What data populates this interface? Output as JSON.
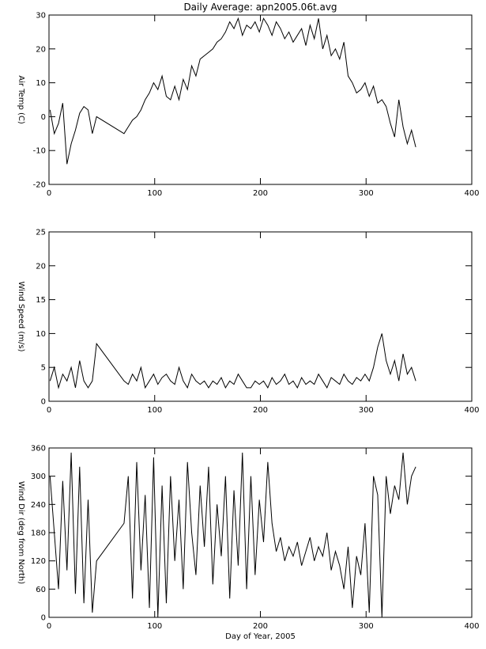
{
  "chart_data": [
    {
      "type": "line",
      "title": "Daily Average: apn2005.06t.avg",
      "ylabel": "Air Temp (C)",
      "x": [
        1,
        5,
        9,
        13,
        17,
        21,
        25,
        29,
        33,
        37,
        41,
        45,
        71,
        75,
        79,
        83,
        87,
        91,
        95,
        99,
        103,
        107,
        111,
        115,
        119,
        123,
        127,
        131,
        135,
        139,
        143,
        147,
        151,
        155,
        159,
        163,
        167,
        171,
        175,
        179,
        183,
        187,
        191,
        195,
        199,
        203,
        207,
        211,
        215,
        219,
        223,
        227,
        231,
        235,
        239,
        243,
        247,
        251,
        255,
        259,
        263,
        267,
        271,
        275,
        279,
        283,
        287,
        291,
        295,
        299,
        303,
        307,
        311,
        315,
        319,
        323,
        327,
        331,
        335,
        339,
        343,
        347
      ],
      "series": [
        {
          "color": "#000000",
          "values": [
            2,
            -5,
            -2,
            4,
            -14,
            -8,
            -4,
            1,
            3,
            2,
            -5,
            0,
            -5,
            -3,
            -1,
            0,
            2,
            5,
            7,
            10,
            8,
            12,
            6,
            5,
            9,
            5,
            11,
            8,
            15,
            12,
            17,
            18,
            19,
            20,
            22,
            23,
            25,
            28,
            26,
            29,
            24,
            27,
            26,
            28,
            25,
            29,
            27,
            24,
            28,
            26,
            23,
            25,
            22,
            24,
            26,
            21,
            27,
            23,
            29,
            20,
            24,
            18,
            20,
            17,
            22,
            12,
            10,
            7,
            8,
            10,
            6,
            9,
            4,
            5,
            3,
            -2,
            -6,
            5,
            -3,
            -8,
            -4,
            -9
          ]
        }
      ],
      "xlim": [
        0,
        400
      ],
      "xticks": [
        0,
        100,
        200,
        300,
        400
      ],
      "ylim": [
        -20,
        30
      ],
      "yticks": [
        -20,
        -10,
        0,
        10,
        20,
        30
      ]
    },
    {
      "type": "line",
      "ylabel": "Wind Speed (m/s)",
      "x": [
        1,
        5,
        9,
        13,
        17,
        21,
        25,
        29,
        33,
        37,
        41,
        45,
        71,
        75,
        79,
        83,
        87,
        91,
        95,
        99,
        103,
        107,
        111,
        115,
        119,
        123,
        127,
        131,
        135,
        139,
        143,
        147,
        151,
        155,
        159,
        163,
        167,
        171,
        175,
        179,
        183,
        187,
        191,
        195,
        199,
        203,
        207,
        211,
        215,
        219,
        223,
        227,
        231,
        235,
        239,
        243,
        247,
        251,
        255,
        259,
        263,
        267,
        271,
        275,
        279,
        283,
        287,
        291,
        295,
        299,
        303,
        307,
        311,
        315,
        319,
        323,
        327,
        331,
        335,
        339,
        343,
        347
      ],
      "series": [
        {
          "color": "#000000",
          "values": [
            3,
            5,
            2,
            4,
            3,
            5,
            2,
            6,
            3,
            2,
            3,
            8.5,
            3,
            2.5,
            4,
            3,
            5,
            2,
            3,
            4,
            2.5,
            3.5,
            4,
            3,
            2.5,
            5,
            3,
            2,
            4,
            3,
            2.5,
            3,
            2,
            3,
            2.5,
            3.5,
            2,
            3,
            2.5,
            4,
            3,
            2,
            2,
            3,
            2.5,
            3,
            2,
            3.5,
            2.5,
            3,
            4,
            2.5,
            3,
            2,
            3.5,
            2.5,
            3,
            2.5,
            4,
            3,
            2,
            3.5,
            3,
            2.5,
            4,
            3,
            2.5,
            3.5,
            3,
            4,
            3,
            5,
            8,
            10,
            6,
            4,
            6,
            3,
            7,
            4,
            5,
            3
          ]
        }
      ],
      "xlim": [
        0,
        400
      ],
      "xticks": [
        0,
        100,
        200,
        300,
        400
      ],
      "ylim": [
        0,
        25
      ],
      "yticks": [
        0,
        5,
        10,
        15,
        20,
        25
      ]
    },
    {
      "type": "line",
      "ylabel": "Wind Dir (deg from North)",
      "xlabel": "Day of Year, 2005",
      "x": [
        1,
        5,
        9,
        13,
        17,
        21,
        25,
        29,
        33,
        37,
        41,
        45,
        71,
        75,
        79,
        83,
        87,
        91,
        95,
        99,
        103,
        107,
        111,
        115,
        119,
        123,
        127,
        131,
        135,
        139,
        143,
        147,
        151,
        155,
        159,
        163,
        167,
        171,
        175,
        179,
        183,
        187,
        191,
        195,
        199,
        203,
        207,
        211,
        215,
        219,
        223,
        227,
        231,
        235,
        239,
        243,
        247,
        251,
        255,
        259,
        263,
        267,
        271,
        275,
        279,
        283,
        287,
        291,
        295,
        299,
        303,
        307,
        311,
        315,
        319,
        323,
        327,
        331,
        335,
        339,
        343,
        347
      ],
      "series": [
        {
          "color": "#000000",
          "values": [
            300,
            180,
            60,
            290,
            100,
            350,
            50,
            320,
            30,
            250,
            10,
            120,
            200,
            300,
            40,
            330,
            100,
            260,
            20,
            340,
            0,
            280,
            30,
            300,
            120,
            250,
            60,
            330,
            180,
            90,
            280,
            150,
            320,
            70,
            240,
            130,
            300,
            40,
            270,
            110,
            350,
            60,
            300,
            90,
            250,
            160,
            330,
            200,
            140,
            170,
            120,
            150,
            130,
            160,
            110,
            140,
            170,
            120,
            150,
            130,
            180,
            100,
            140,
            110,
            60,
            150,
            20,
            130,
            90,
            200,
            10,
            300,
            260,
            0,
            300,
            220,
            280,
            250,
            350,
            240,
            300,
            320
          ]
        }
      ],
      "xlim": [
        0,
        400
      ],
      "xticks": [
        0,
        100,
        200,
        300,
        400
      ],
      "ylim": [
        0,
        360
      ],
      "yticks": [
        0,
        60,
        120,
        180,
        240,
        300,
        360
      ]
    }
  ]
}
